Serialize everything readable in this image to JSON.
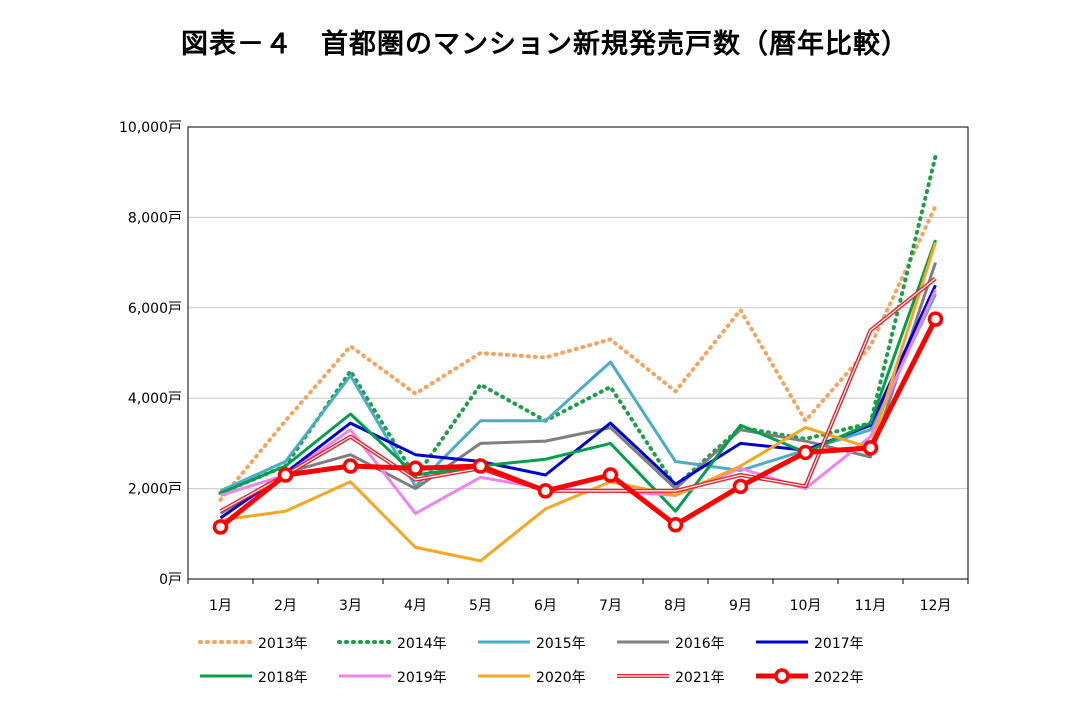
{
  "chart_data": {
    "type": "line",
    "title": "図表－４　首都圏のマンション新規発売戸数（暦年比較）",
    "xlabel": "",
    "ylabel": "",
    "categories": [
      "1月",
      "2月",
      "3月",
      "4月",
      "5月",
      "6月",
      "7月",
      "8月",
      "9月",
      "10月",
      "11月",
      "12月"
    ],
    "y_ticks": [
      "0戸",
      "2,000戸",
      "4,000戸",
      "6,000戸",
      "8,000戸",
      "10,000戸"
    ],
    "ylim": [
      0,
      10000
    ],
    "grid": true,
    "legend_position": "bottom",
    "series": [
      {
        "name": "2013年",
        "color": "#F4A460",
        "style": "dotted",
        "values": [
          1750,
          3500,
          5150,
          4100,
          5000,
          4900,
          5300,
          4150,
          5950,
          3500,
          5150,
          8250
        ]
      },
      {
        "name": "2014年",
        "color": "#1E9E4A",
        "style": "dotted",
        "values": [
          1900,
          2500,
          4600,
          2250,
          4300,
          3500,
          4250,
          2050,
          3350,
          3100,
          3450,
          9350
        ]
      },
      {
        "name": "2015年",
        "color": "#4BACC6",
        "style": "solid",
        "values": [
          1950,
          2600,
          4500,
          2050,
          3500,
          3500,
          4800,
          2600,
          2400,
          2850,
          3300,
          6300
        ]
      },
      {
        "name": "2016年",
        "color": "#7F7F7F",
        "style": "solid",
        "values": [
          1450,
          2350,
          2750,
          2000,
          3000,
          3050,
          3350,
          2000,
          3300,
          3050,
          2700,
          7000
        ]
      },
      {
        "name": "2017年",
        "color": "#0000CD",
        "style": "solid",
        "values": [
          1350,
          2350,
          3450,
          2750,
          2600,
          2300,
          3450,
          2100,
          3000,
          2850,
          3400,
          6500
        ]
      },
      {
        "name": "2018年",
        "color": "#00A04A",
        "style": "solid",
        "values": [
          1900,
          2500,
          3650,
          2300,
          2500,
          2650,
          3000,
          1500,
          3400,
          2800,
          3450,
          7500
        ]
      },
      {
        "name": "2019年",
        "color": "#EE82EE",
        "style": "solid",
        "values": [
          1850,
          2300,
          3300,
          1450,
          2250,
          2000,
          1950,
          1850,
          2450,
          2000,
          3150,
          6400
        ]
      },
      {
        "name": "2020年",
        "color": "#F5A623",
        "style": "solid",
        "values": [
          1300,
          1500,
          2150,
          700,
          400,
          1550,
          2150,
          1850,
          2500,
          3350,
          2900,
          7450
        ]
      },
      {
        "name": "2021年",
        "color": "#E8212B",
        "style": "double",
        "values": [
          1500,
          2300,
          3150,
          2200,
          2450,
          1950,
          1950,
          1950,
          2300,
          2050,
          5500,
          6650
        ]
      },
      {
        "name": "2022年",
        "color": "#FF0000",
        "style": "marker",
        "values": [
          1150,
          2300,
          2500,
          2450,
          2500,
          1950,
          2300,
          1200,
          2050,
          2800,
          2900,
          5750
        ]
      }
    ]
  }
}
